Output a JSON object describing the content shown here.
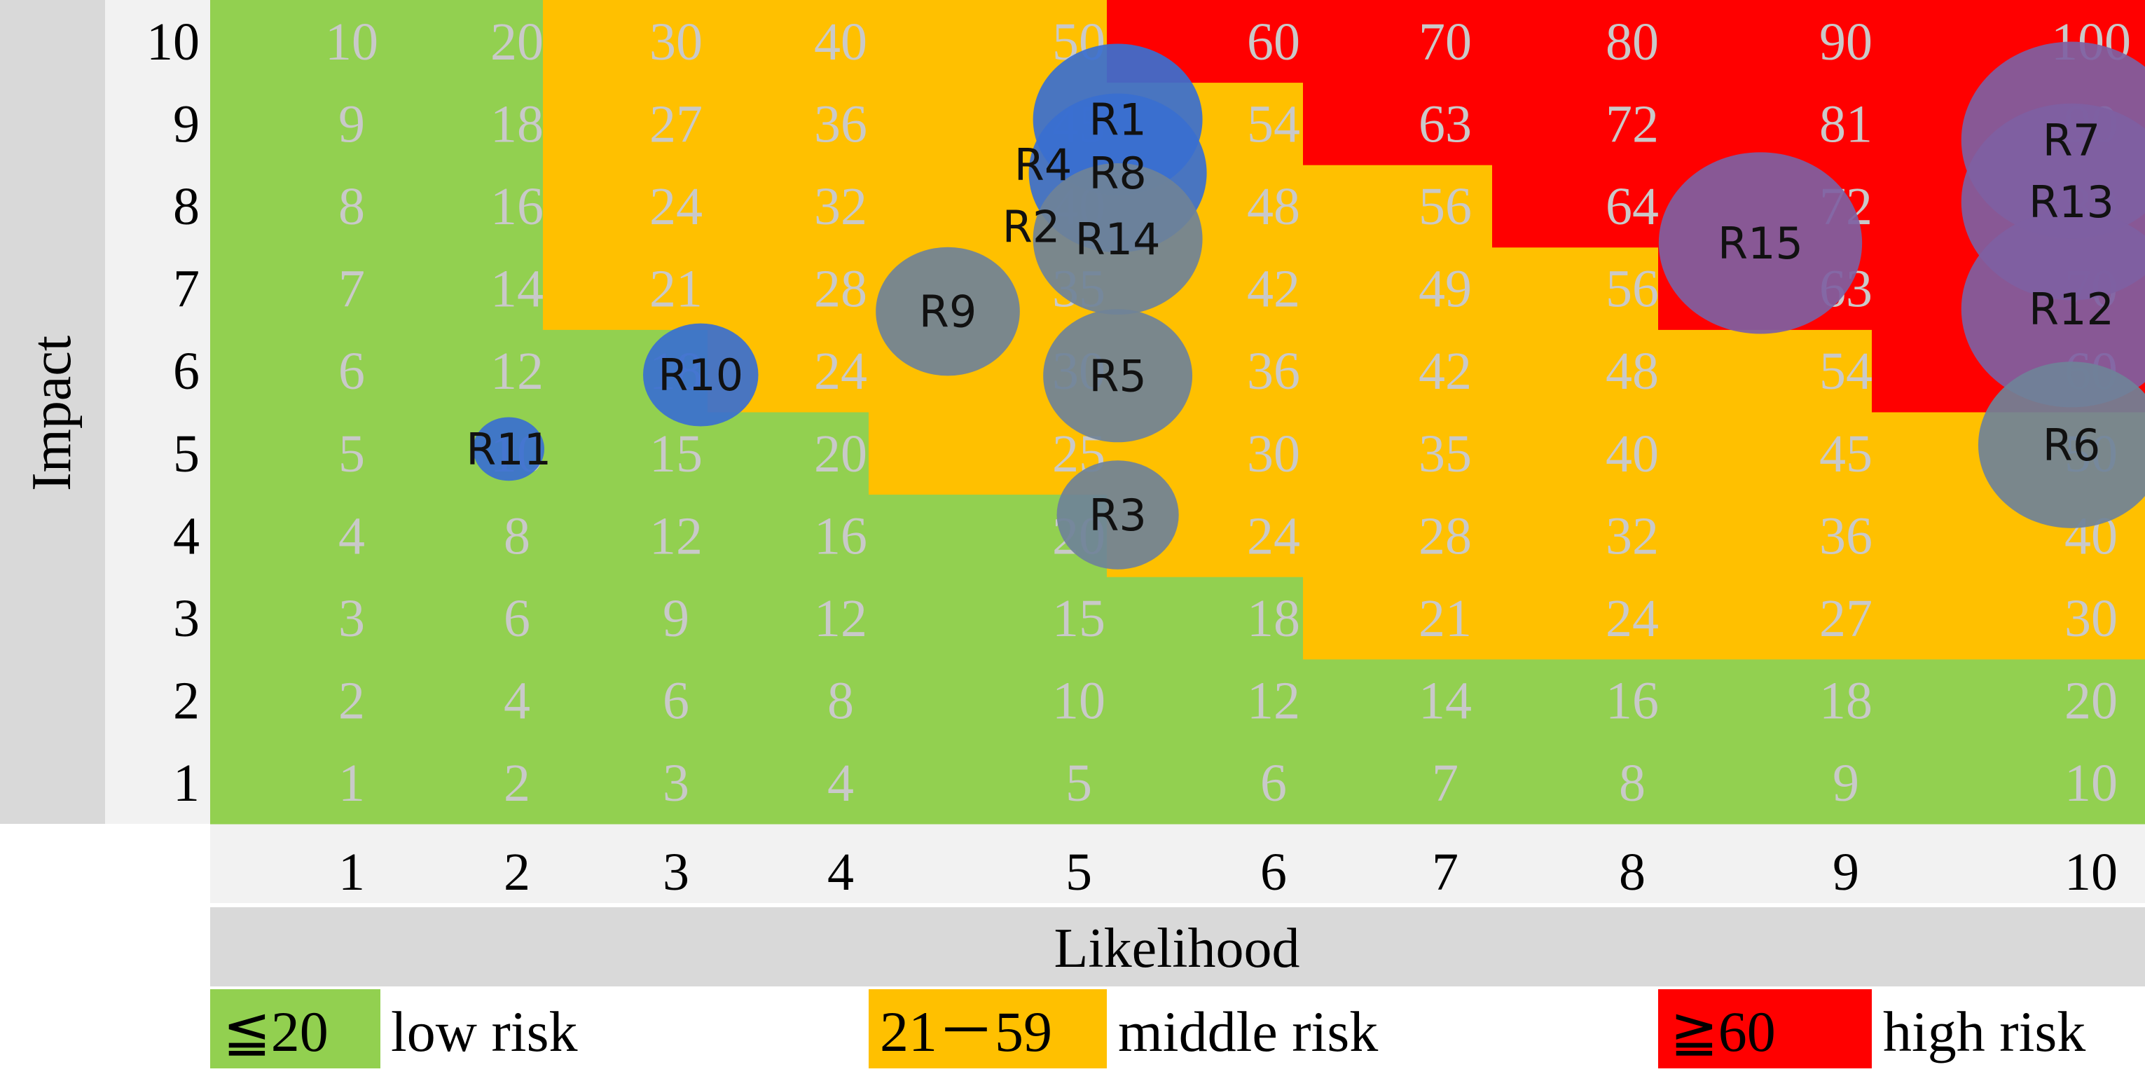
{
  "chart_data": {
    "type": "heatmap",
    "title": "",
    "xlabel": "Likelihood",
    "ylabel": "Impact",
    "x_ticks": [
      "1",
      "2",
      "3",
      "4",
      "5",
      "6",
      "7",
      "8",
      "9",
      "10"
    ],
    "y_ticks": [
      "1",
      "2",
      "3",
      "4",
      "5",
      "6",
      "7",
      "8",
      "9",
      "10"
    ],
    "xlim": [
      1,
      10
    ],
    "ylim": [
      1,
      10
    ],
    "cell_value_rule": "likelihood x impact",
    "zone_thresholds": {
      "low_max": 20,
      "high_min": 60
    },
    "zone_rows": [
      {
        "impact": 1,
        "orange_from": null,
        "red_from": null
      },
      {
        "impact": 2,
        "orange_from": null,
        "red_from": null
      },
      {
        "impact": 3,
        "orange_from": 7,
        "red_from": null
      },
      {
        "impact": 4,
        "orange_from": 6,
        "red_from": null
      },
      {
        "impact": 5,
        "orange_from": 5,
        "red_from": null
      },
      {
        "impact": 6,
        "orange_from": 4,
        "red_from": 10
      },
      {
        "impact": 7,
        "orange_from": 3,
        "red_from": 9
      },
      {
        "impact": 8,
        "orange_from": 3,
        "red_from": 8
      },
      {
        "impact": 9,
        "orange_from": 3,
        "red_from": 7
      },
      {
        "impact": 10,
        "orange_from": 3,
        "red_from": 6
      }
    ],
    "risks": [
      {
        "id": "R1",
        "likelihood": 5.2,
        "impact": 9.05,
        "size": 1.0,
        "color": "blue"
      },
      {
        "id": "R4",
        "likelihood": 4.85,
        "impact": 8.5,
        "size": 0.0,
        "color": "blue"
      },
      {
        "id": "R8",
        "likelihood": 5.2,
        "impact": 8.4,
        "size": 1.05,
        "color": "blue"
      },
      {
        "id": "R2",
        "likelihood": 4.8,
        "impact": 7.75,
        "size": 0.0,
        "color": "grey"
      },
      {
        "id": "R14",
        "likelihood": 5.2,
        "impact": 7.6,
        "size": 1.0,
        "color": "grey"
      },
      {
        "id": "R9",
        "likelihood": 4.45,
        "impact": 6.72,
        "size": 0.85,
        "color": "grey"
      },
      {
        "id": "R10",
        "likelihood": 3.15,
        "impact": 5.95,
        "size": 0.68,
        "color": "blue"
      },
      {
        "id": "R5",
        "likelihood": 5.2,
        "impact": 5.94,
        "size": 0.88,
        "color": "grey"
      },
      {
        "id": "R11",
        "likelihood": 1.95,
        "impact": 5.05,
        "size": 0.42,
        "color": "blue"
      },
      {
        "id": "R3",
        "likelihood": 5.2,
        "impact": 4.25,
        "size": 0.72,
        "color": "grey"
      },
      {
        "id": "R15",
        "likelihood": 8.6,
        "impact": 7.55,
        "size": 1.2,
        "color": "purple"
      },
      {
        "id": "R7",
        "likelihood": 9.92,
        "impact": 8.8,
        "size": 1.3,
        "color": "purple"
      },
      {
        "id": "R13",
        "likelihood": 9.92,
        "impact": 8.05,
        "size": 1.3,
        "color": "purple"
      },
      {
        "id": "R12",
        "likelihood": 9.92,
        "impact": 6.75,
        "size": 1.3,
        "color": "purple"
      },
      {
        "id": "R6",
        "likelihood": 9.92,
        "impact": 5.1,
        "size": 1.1,
        "color": "grey"
      }
    ],
    "legend": [
      {
        "key": "≦20",
        "label": "low risk",
        "color": "#92d050"
      },
      {
        "key": "21－59",
        "label": "middle risk",
        "color": "#ffc000"
      },
      {
        "key": "≧60",
        "label": "high risk",
        "color": "#ff0000"
      }
    ]
  },
  "colors": {
    "low": "#92d050",
    "middle": "#ffc000",
    "high": "#ff0000",
    "axis_band": "#d9d9d9",
    "tick_band": "#f2f2f2",
    "cell_text": "#c9c9c9",
    "bubble_blue": "#3a6fd0",
    "bubble_grey": "#6f8298",
    "bubble_purple": "#7e5fa2"
  }
}
